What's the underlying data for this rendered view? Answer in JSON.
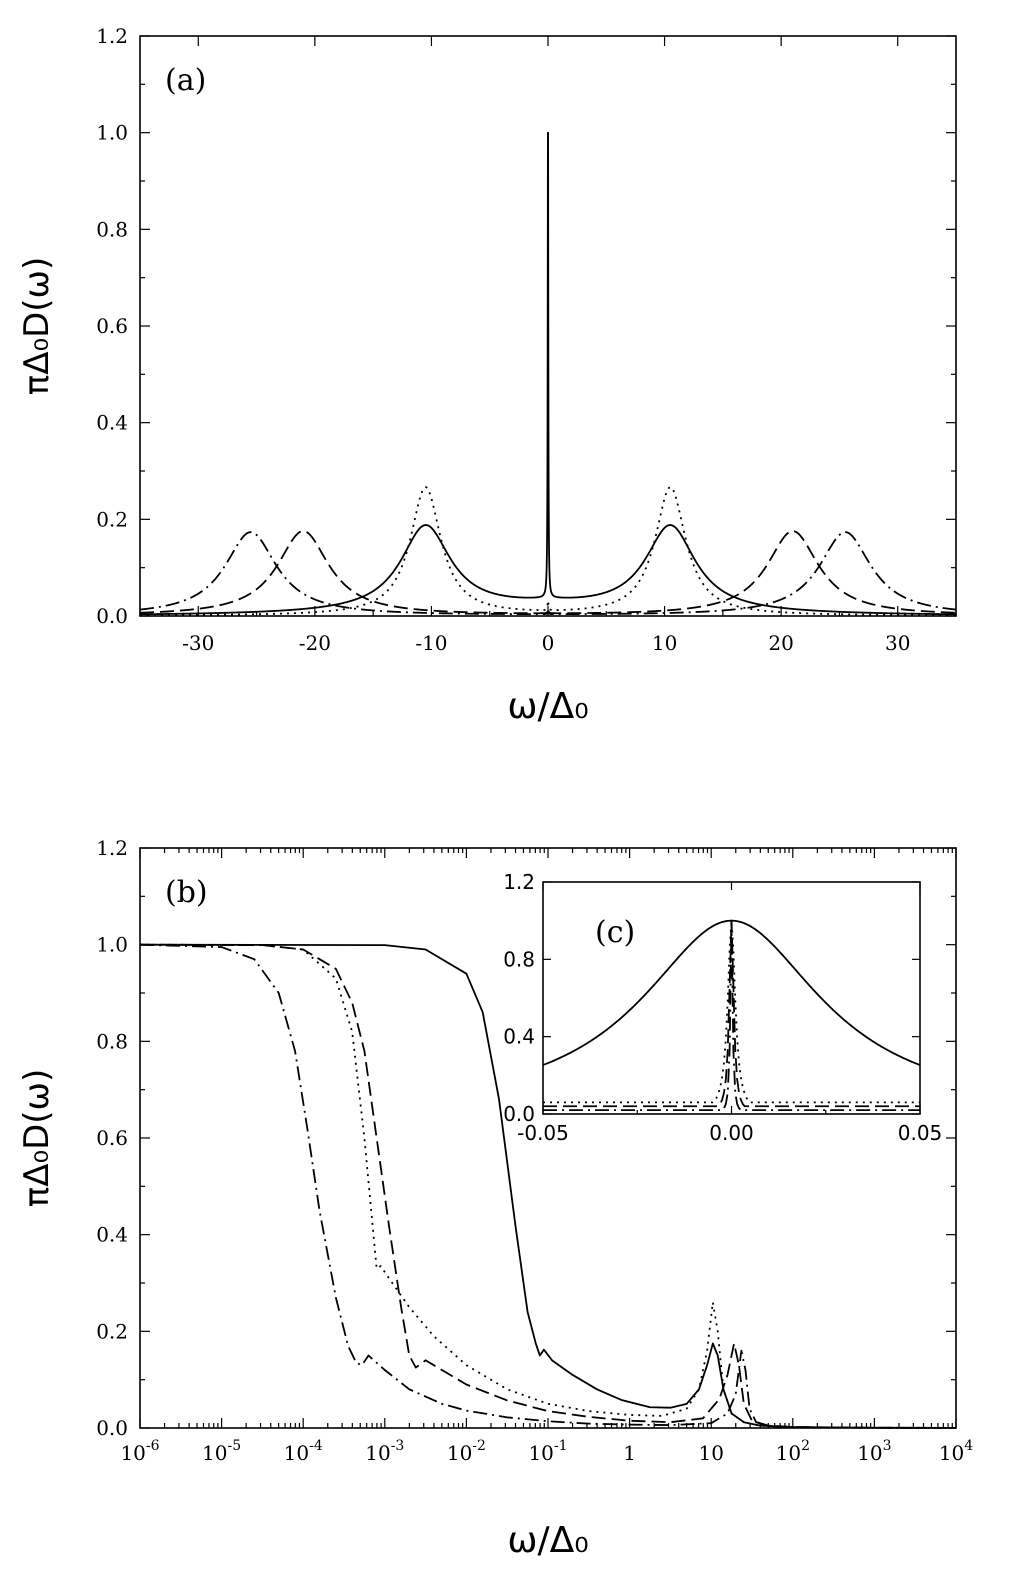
{
  "chart_data": [
    {
      "id": "a",
      "type": "line",
      "panel_label": "(a)",
      "xlabel": "ω/Δ₀",
      "ylabel": "πΔ₀D(ω)",
      "xlim": [
        -35,
        35
      ],
      "ylim": [
        0,
        1.2
      ],
      "x_scale": "linear",
      "x_ticks": [
        -30,
        -20,
        -10,
        0,
        10,
        20,
        30
      ],
      "x_tick_labels": [
        "-30",
        "-20",
        "-10",
        "0",
        "10",
        "20",
        "30"
      ],
      "y_ticks": [
        0,
        0.2,
        0.4,
        0.6,
        0.8,
        1.0,
        1.2
      ],
      "y_tick_labels": [
        "0.0",
        "0.2",
        "0.4",
        "0.6",
        "0.8",
        "1.0",
        "1.2"
      ],
      "series": [
        {
          "style": "solid",
          "peak_position": 10.5,
          "peak_height": 0.178,
          "peak_width": 2.6,
          "center_peak_height": 1.0,
          "center_peak_width": 0.03,
          "baseline": 0.018
        },
        {
          "style": "dotted",
          "peak_position": 10.5,
          "peak_height": 0.265,
          "peak_width": 1.6,
          "center_peak_height": 0.02,
          "center_peak_width": 0.05,
          "baseline": 0.0
        },
        {
          "style": "dashed",
          "peak_position": 21.0,
          "peak_height": 0.175,
          "peak_width": 2.7,
          "center_peak_height": 0.01,
          "center_peak_width": 0.05,
          "baseline": 0.0
        },
        {
          "style": "dash-dot",
          "peak_position": 25.5,
          "peak_height": 0.173,
          "peak_width": 2.7,
          "center_peak_height": 0.006,
          "center_peak_width": 0.05,
          "baseline": 0.0
        }
      ]
    },
    {
      "id": "b",
      "type": "line",
      "panel_label": "(b)",
      "xlabel": "ω/Δ₀",
      "ylabel": "πΔ₀D(ω)",
      "x_scale": "log",
      "xlim_log10": [
        -6,
        4
      ],
      "ylim": [
        0,
        1.2
      ],
      "x_ticks_log10": [
        -6,
        -5,
        -4,
        -3,
        -2,
        -1,
        0,
        1,
        2,
        3,
        4
      ],
      "x_tick_labels": [
        {
          "base": "10",
          "exp": "-6"
        },
        {
          "base": "10",
          "exp": "-5"
        },
        {
          "base": "10",
          "exp": "-4"
        },
        {
          "base": "10",
          "exp": "-3"
        },
        {
          "base": "10",
          "exp": "-2"
        },
        {
          "base": "10",
          "exp": "-1"
        },
        {
          "base": "1",
          "exp": ""
        },
        {
          "base": "10",
          "exp": ""
        },
        {
          "base": "10",
          "exp": "2"
        },
        {
          "base": "10",
          "exp": "3"
        },
        {
          "base": "10",
          "exp": "4"
        }
      ],
      "y_ticks": [
        0,
        0.2,
        0.4,
        0.6,
        0.8,
        1.0,
        1.2
      ],
      "y_tick_labels": [
        "0.0",
        "0.2",
        "0.4",
        "0.6",
        "0.8",
        "1.0",
        "1.2"
      ],
      "series": [
        {
          "style": "solid",
          "x_log10": [
            -6,
            -3,
            -2.5,
            -2,
            -1.8,
            -1.6,
            -1.4,
            -1.25,
            -1.15,
            -1.1,
            -1.05,
            -0.95,
            -0.7,
            -0.4,
            -0.1,
            0.25,
            0.5,
            0.7,
            0.85,
            0.95,
            1.02,
            1.08,
            1.15,
            1.25,
            1.4,
            1.6,
            2,
            2.5,
            3,
            4
          ],
          "y": [
            1.0,
            0.999,
            0.99,
            0.94,
            0.86,
            0.68,
            0.42,
            0.24,
            0.175,
            0.15,
            0.162,
            0.14,
            0.11,
            0.08,
            0.058,
            0.043,
            0.042,
            0.05,
            0.08,
            0.13,
            0.175,
            0.15,
            0.08,
            0.03,
            0.012,
            0.005,
            0.002,
            0.001,
            0.0005,
            0.0002
          ]
        },
        {
          "style": "dotted",
          "x_log10": [
            -6,
            -4.5,
            -4,
            -3.6,
            -3.4,
            -3.25,
            -3.15,
            -3.1,
            -3.05,
            -2.95,
            -2.7,
            -2.4,
            -2,
            -1.5,
            -1,
            -0.5,
            0,
            0.4,
            0.7,
            0.85,
            0.95,
            1.02,
            1.08,
            1.15,
            1.25,
            1.4,
            1.6,
            2,
            3,
            4
          ],
          "y": [
            1.0,
            0.999,
            0.99,
            0.93,
            0.82,
            0.6,
            0.42,
            0.33,
            0.335,
            0.31,
            0.25,
            0.19,
            0.13,
            0.08,
            0.05,
            0.035,
            0.027,
            0.025,
            0.04,
            0.08,
            0.16,
            0.26,
            0.2,
            0.08,
            0.03,
            0.012,
            0.005,
            0.002,
            0.0005,
            0.0002
          ]
        },
        {
          "style": "dashed",
          "x_log10": [
            -6,
            -4.5,
            -4,
            -3.6,
            -3.4,
            -3.25,
            -3.1,
            -2.95,
            -2.8,
            -2.7,
            -2.62,
            -2.5,
            -2.3,
            -2,
            -1.5,
            -1,
            -0.5,
            0,
            0.5,
            0.9,
            1.1,
            1.2,
            1.28,
            1.34,
            1.4,
            1.5,
            1.7,
            2,
            3,
            4
          ],
          "y": [
            1.0,
            0.999,
            0.99,
            0.95,
            0.88,
            0.78,
            0.6,
            0.42,
            0.25,
            0.15,
            0.125,
            0.14,
            0.12,
            0.09,
            0.057,
            0.035,
            0.023,
            0.015,
            0.012,
            0.02,
            0.06,
            0.11,
            0.175,
            0.13,
            0.05,
            0.015,
            0.005,
            0.002,
            0.0005,
            0.0002
          ]
        },
        {
          "style": "dash-dot",
          "x_log10": [
            -6,
            -5,
            -4.6,
            -4.3,
            -4.1,
            -3.95,
            -3.8,
            -3.6,
            -3.45,
            -3.35,
            -3.28,
            -3.2,
            -3,
            -2.7,
            -2.3,
            -2,
            -1.5,
            -1,
            -0.5,
            0,
            0.5,
            1,
            1.2,
            1.3,
            1.37,
            1.42,
            1.47,
            1.55,
            1.7,
            2,
            3,
            4
          ],
          "y": [
            1.0,
            0.995,
            0.97,
            0.9,
            0.78,
            0.62,
            0.45,
            0.27,
            0.17,
            0.135,
            0.13,
            0.15,
            0.12,
            0.08,
            0.05,
            0.036,
            0.022,
            0.014,
            0.009,
            0.007,
            0.006,
            0.01,
            0.03,
            0.07,
            0.16,
            0.12,
            0.04,
            0.012,
            0.004,
            0.0015,
            0.0004,
            0.0002
          ]
        }
      ]
    },
    {
      "id": "c",
      "type": "line",
      "panel_label": "(c)",
      "xlim": [
        -0.05,
        0.05
      ],
      "ylim": [
        0,
        1.2
      ],
      "x_ticks": [
        -0.05,
        0.0,
        0.05
      ],
      "x_tick_labels": [
        "-0.05",
        "0.00",
        "0.05"
      ],
      "y_ticks": [
        0,
        0.4,
        0.8,
        1.2
      ],
      "y_tick_labels": [
        "0.0",
        "0.4",
        "0.8",
        "1.2"
      ],
      "series": [
        {
          "style": "solid",
          "lorentz_width": 0.0291,
          "peak_height": 1.0
        },
        {
          "style": "dotted",
          "lorentz_width": 0.0012,
          "peak_height": 1.0,
          "baseline": 0.06
        },
        {
          "style": "dashed",
          "lorentz_width": 0.0007,
          "peak_height": 1.0,
          "baseline": 0.04
        },
        {
          "style": "dash-dot",
          "lorentz_width": 0.00035,
          "peak_height": 1.0,
          "baseline": 0.02
        }
      ]
    }
  ]
}
